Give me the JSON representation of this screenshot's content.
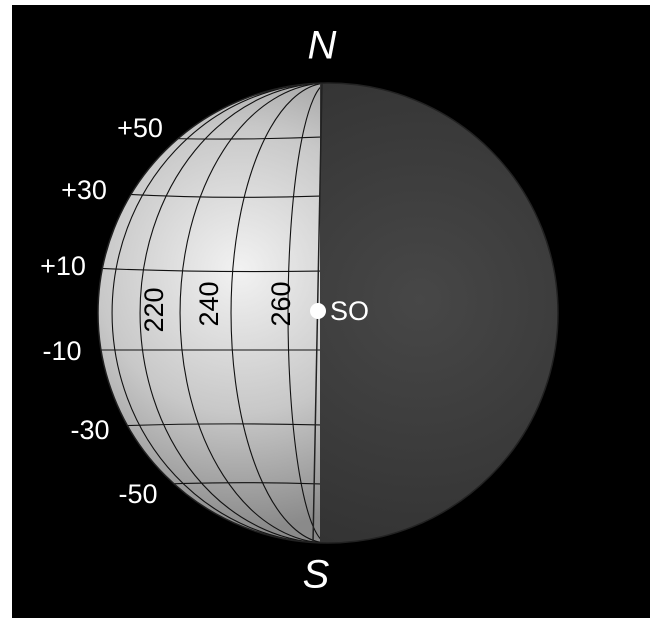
{
  "poles": {
    "north": "N",
    "south": "S"
  },
  "latitude_labels": [
    "+50",
    "+30",
    "+10",
    "-10",
    "-30",
    "-50"
  ],
  "longitude_labels": [
    "220",
    "240",
    "260"
  ],
  "marker_label": "SO"
}
